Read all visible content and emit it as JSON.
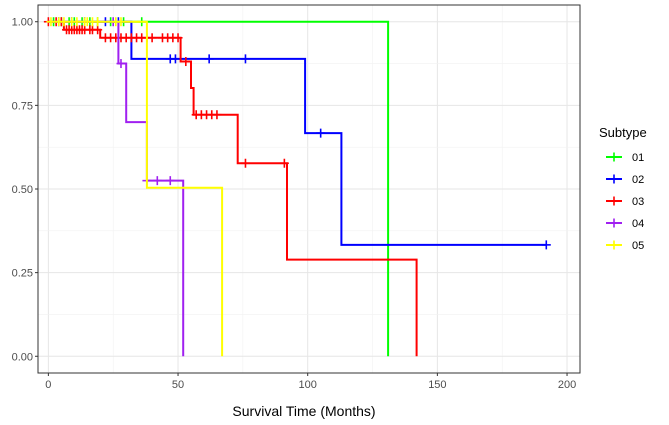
{
  "chart_data": {
    "type": "line",
    "subtype": "kaplan-meier step curve with censor marks",
    "title": "",
    "xlabel": "Survival Time (Months)",
    "ylabel": "",
    "xlim": [
      -4,
      205
    ],
    "ylim": [
      -0.05,
      1.05
    ],
    "x_ticks": [
      0,
      50,
      100,
      150,
      200
    ],
    "y_ticks": [
      0.0,
      0.25,
      0.5,
      0.75,
      1.0
    ],
    "x_tick_labels": [
      "0",
      "50",
      "100",
      "150",
      "200"
    ],
    "y_tick_labels": [
      "0.00",
      "0.25",
      "0.50",
      "0.75",
      "1.00"
    ],
    "grid": true,
    "legend": {
      "title": "Subtype",
      "placement": "right"
    },
    "series": [
      {
        "name": "01",
        "color": "#00FF00",
        "steps": [
          [
            0,
            1.0
          ],
          [
            131,
            1.0
          ],
          [
            131,
            0.0
          ]
        ],
        "censors": [
          [
            2,
            1.0
          ],
          [
            5,
            1.0
          ],
          [
            8,
            1.0
          ],
          [
            10,
            1.0
          ],
          [
            13,
            1.0
          ],
          [
            16,
            1.0
          ],
          [
            19,
            1.0
          ],
          [
            24,
            1.0
          ],
          [
            29,
            1.0
          ],
          [
            36,
            1.0
          ]
        ]
      },
      {
        "name": "02",
        "color": "#0000FF",
        "steps": [
          [
            0,
            1.0
          ],
          [
            32,
            1.0
          ],
          [
            32,
            0.889
          ],
          [
            99,
            0.889
          ],
          [
            99,
            0.667
          ],
          [
            113,
            0.667
          ],
          [
            113,
            0.333
          ],
          [
            192,
            0.333
          ]
        ],
        "censors": [
          [
            4,
            1.0
          ],
          [
            9,
            1.0
          ],
          [
            14,
            1.0
          ],
          [
            22,
            1.0
          ],
          [
            27,
            1.0
          ],
          [
            47,
            0.889
          ],
          [
            49,
            0.889
          ],
          [
            62,
            0.889
          ],
          [
            76,
            0.889
          ],
          [
            105,
            0.667
          ],
          [
            192,
            0.333
          ]
        ]
      },
      {
        "name": "03",
        "color": "#FF0000",
        "steps": [
          [
            0,
            1.0
          ],
          [
            6,
            1.0
          ],
          [
            6,
            0.976
          ],
          [
            20,
            0.976
          ],
          [
            20,
            0.952
          ],
          [
            51,
            0.952
          ],
          [
            51,
            0.881
          ],
          [
            55,
            0.881
          ],
          [
            55,
            0.802
          ],
          [
            56,
            0.802
          ],
          [
            56,
            0.722
          ],
          [
            73,
            0.722
          ],
          [
            73,
            0.577
          ],
          [
            92,
            0.577
          ],
          [
            92,
            0.289
          ],
          [
            142,
            0.289
          ],
          [
            142,
            0.0
          ]
        ],
        "censors": [
          [
            0,
            1.0
          ],
          [
            3,
            1.0
          ],
          [
            5,
            1.0
          ],
          [
            7,
            0.976
          ],
          [
            8,
            0.976
          ],
          [
            9,
            0.976
          ],
          [
            10,
            0.976
          ],
          [
            11,
            0.976
          ],
          [
            12,
            0.976
          ],
          [
            13,
            0.976
          ],
          [
            14,
            0.976
          ],
          [
            16,
            0.976
          ],
          [
            17,
            0.976
          ],
          [
            19,
            0.976
          ],
          [
            22,
            0.952
          ],
          [
            24,
            0.952
          ],
          [
            26,
            0.952
          ],
          [
            28,
            0.952
          ],
          [
            30,
            0.952
          ],
          [
            32,
            0.952
          ],
          [
            34,
            0.952
          ],
          [
            36,
            0.952
          ],
          [
            38,
            0.952
          ],
          [
            40,
            0.952
          ],
          [
            44,
            0.952
          ],
          [
            46,
            0.952
          ],
          [
            48,
            0.952
          ],
          [
            50,
            0.952
          ],
          [
            53,
            0.881
          ],
          [
            57,
            0.722
          ],
          [
            59,
            0.722
          ],
          [
            61,
            0.722
          ],
          [
            63,
            0.722
          ],
          [
            65,
            0.722
          ],
          [
            76,
            0.577
          ],
          [
            91,
            0.577
          ]
        ]
      },
      {
        "name": "04",
        "color": "#A020F0",
        "steps": [
          [
            0,
            1.0
          ],
          [
            27,
            1.0
          ],
          [
            27,
            0.875
          ],
          [
            30,
            0.875
          ],
          [
            30,
            0.7
          ],
          [
            38,
            0.7
          ],
          [
            38,
            0.525
          ],
          [
            52,
            0.525
          ],
          [
            52,
            0.0
          ]
        ],
        "censors": [
          [
            25,
            1.0
          ],
          [
            28,
            0.875
          ],
          [
            38,
            0.525
          ],
          [
            42,
            0.525
          ],
          [
            47,
            0.525
          ]
        ]
      },
      {
        "name": "05",
        "color": "#FFFF00",
        "steps": [
          [
            0,
            1.0
          ],
          [
            38,
            1.0
          ],
          [
            38,
            0.504
          ],
          [
            67,
            0.504
          ],
          [
            67,
            0.0
          ]
        ],
        "censors": [
          [
            1,
            1.0
          ],
          [
            4,
            1.0
          ],
          [
            6,
            1.0
          ],
          [
            9,
            1.0
          ],
          [
            11,
            1.0
          ],
          [
            14,
            1.0
          ],
          [
            15,
            1.0
          ],
          [
            17,
            1.0
          ],
          [
            19,
            1.0
          ],
          [
            26,
            1.0
          ],
          [
            28,
            1.0
          ]
        ]
      }
    ]
  }
}
